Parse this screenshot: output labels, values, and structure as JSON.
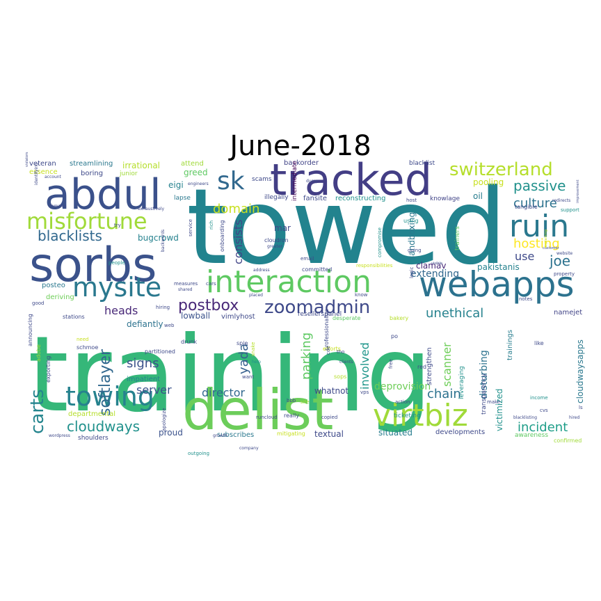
{
  "chart_data": {
    "type": "wordcloud",
    "title": "June-2018",
    "colormap": "viridis",
    "background": "#ffffff",
    "words": [
      {
        "text": "towed",
        "weight": 150,
        "color": "#22838e"
      },
      {
        "text": "training",
        "weight": 150,
        "color": "#35b779"
      },
      {
        "text": "delist",
        "weight": 80,
        "color": "#6ccd5a"
      },
      {
        "text": "abdul",
        "weight": 60,
        "color": "#3b518b"
      },
      {
        "text": "sorbs",
        "weight": 68,
        "color": "#3b528b"
      },
      {
        "text": "tracked",
        "weight": 62,
        "color": "#433e85"
      },
      {
        "text": "webapps",
        "weight": 50,
        "color": "#2c728e"
      },
      {
        "text": "ruin",
        "weight": 44,
        "color": "#2a788e"
      },
      {
        "text": "interaction",
        "weight": 44,
        "color": "#5ec962"
      },
      {
        "text": "virtbiz",
        "weight": 44,
        "color": "#a0da39"
      },
      {
        "text": "towing",
        "weight": 38,
        "color": "#26828e"
      },
      {
        "text": "mysite",
        "weight": 38,
        "color": "#2a788e"
      },
      {
        "text": "misfortune",
        "weight": 32,
        "color": "#a0da39"
      },
      {
        "text": "sk",
        "weight": 36,
        "color": "#31688e"
      },
      {
        "text": "switzerland",
        "weight": 26,
        "color": "#b5de2b"
      },
      {
        "text": "zoomadmin",
        "weight": 26,
        "color": "#3e4989"
      },
      {
        "text": "postbox",
        "weight": 22,
        "color": "#482878"
      },
      {
        "text": "carts",
        "weight": 26,
        "color": "#25858e"
      },
      {
        "text": "softlayer",
        "weight": 22,
        "color": "#31688e"
      },
      {
        "text": "cloudways",
        "weight": 20,
        "color": "#21918c"
      },
      {
        "text": "blacklists",
        "weight": 20,
        "color": "#31688e"
      },
      {
        "text": "passive",
        "weight": 20,
        "color": "#21918c"
      },
      {
        "text": "culture",
        "weight": 18,
        "color": "#2c728e"
      },
      {
        "text": "joe",
        "weight": 20,
        "color": "#2c728e"
      },
      {
        "text": "hosting",
        "weight": 18,
        "color": "#fde725"
      },
      {
        "text": "consists",
        "weight": 16,
        "color": "#414487"
      },
      {
        "text": "domain",
        "weight": 18,
        "color": "#c8e020"
      },
      {
        "text": "chain",
        "weight": 18,
        "color": "#2c728e"
      },
      {
        "text": "incident",
        "weight": 18,
        "color": "#1f9e89"
      },
      {
        "text": "unethical",
        "weight": 18,
        "color": "#26828e"
      },
      {
        "text": "yada",
        "weight": 18,
        "color": "#355f8d"
      },
      {
        "text": "parking",
        "weight": 18,
        "color": "#5ec962"
      },
      {
        "text": "scanner",
        "weight": 16,
        "color": "#6ece58"
      },
      {
        "text": "involved",
        "weight": 16,
        "color": "#1f968b"
      },
      {
        "text": "disturbing",
        "weight": 14,
        "color": "#2c728e"
      },
      {
        "text": "heads",
        "weight": 16,
        "color": "#482878"
      },
      {
        "text": "signs",
        "weight": 18,
        "color": "#3b528b"
      },
      {
        "text": "director",
        "weight": 16,
        "color": "#31688e"
      },
      {
        "text": "server",
        "weight": 16,
        "color": "#3b528b"
      },
      {
        "text": "use",
        "weight": 16,
        "color": "#3e4989"
      },
      {
        "text": "clamav",
        "weight": 12,
        "color": "#482878"
      },
      {
        "text": "pakistanis",
        "weight": 12,
        "color": "#26828e"
      },
      {
        "text": "extending",
        "weight": 14,
        "color": "#31688e"
      },
      {
        "text": "sandboxing",
        "weight": 12,
        "color": "#2a788e"
      },
      {
        "text": "deprovision",
        "weight": 14,
        "color": "#6ece58"
      },
      {
        "text": "cloudwaysapps",
        "weight": 12,
        "color": "#2a788e"
      },
      {
        "text": "victimized",
        "weight": 12,
        "color": "#21918c"
      },
      {
        "text": "trainings",
        "weight": 10,
        "color": "#287d8e"
      },
      {
        "text": "irrational",
        "weight": 12,
        "color": "#b5de2b"
      },
      {
        "text": "bugcrowd",
        "weight": 12,
        "color": "#26828e"
      },
      {
        "text": "mar",
        "weight": 12,
        "color": "#3e4989"
      },
      {
        "text": "lowball",
        "weight": 12,
        "color": "#3b528b"
      },
      {
        "text": "vimlyhost",
        "weight": 10,
        "color": "#3e4989"
      },
      {
        "text": "namejet",
        "weight": 10,
        "color": "#414487"
      },
      {
        "text": "situated",
        "weight": 12,
        "color": "#287d8e"
      },
      {
        "text": "textual",
        "weight": 12,
        "color": "#3e4989"
      },
      {
        "text": "proud",
        "weight": 12,
        "color": "#3b528b"
      },
      {
        "text": "defiantly",
        "weight": 12,
        "color": "#2c728e"
      },
      {
        "text": "whatnot",
        "weight": 12,
        "color": "#3e4989"
      },
      {
        "text": "strengthen",
        "weight": 10,
        "color": "#3e4989"
      },
      {
        "text": "impatient",
        "weight": 10,
        "color": "#26828e"
      },
      {
        "text": "pooling",
        "weight": 12,
        "color": "#c8e020"
      },
      {
        "text": "oil",
        "weight": 12,
        "color": "#287d8e"
      },
      {
        "text": "greed",
        "weight": 12,
        "color": "#5ec962"
      },
      {
        "text": "eigi",
        "weight": 12,
        "color": "#26828e"
      },
      {
        "text": "fansite",
        "weight": 10,
        "color": "#3e4989"
      },
      {
        "text": "posteo",
        "weight": 10,
        "color": "#2a788e"
      },
      {
        "text": "deriving",
        "weight": 10,
        "color": "#6ece58"
      },
      {
        "text": "streamlining",
        "weight": 10,
        "color": "#2a788e"
      },
      {
        "text": "veteran",
        "weight": 10,
        "color": "#3e4989"
      },
      {
        "text": "essence",
        "weight": 10,
        "color": "#c8e020"
      },
      {
        "text": "boring",
        "weight": 10,
        "color": "#3e4989"
      },
      {
        "text": "attend",
        "weight": 10,
        "color": "#a0da39"
      },
      {
        "text": "backorder",
        "weight": 10,
        "color": "#414487"
      },
      {
        "text": "blacklist",
        "weight": 9,
        "color": "#3e4989"
      },
      {
        "text": "intermediate",
        "weight": 9,
        "color": "#440154"
      },
      {
        "text": "reconstructing",
        "weight": 10,
        "color": "#21918c"
      },
      {
        "text": "illegally",
        "weight": 9,
        "color": "#3e4989"
      },
      {
        "text": "knowlage",
        "weight": 9,
        "color": "#414487"
      },
      {
        "text": "lapse",
        "weight": 9,
        "color": "#2a788e"
      },
      {
        "text": "scams",
        "weight": 9,
        "color": "#3e4989"
      },
      {
        "text": "junior",
        "weight": 9,
        "color": "#a0da39"
      },
      {
        "text": "subscribes",
        "weight": 10,
        "color": "#2a788e"
      },
      {
        "text": "departmental",
        "weight": 10,
        "color": "#b5de2b"
      },
      {
        "text": "developments",
        "weight": 10,
        "color": "#3e4989"
      },
      {
        "text": "shoulders",
        "weight": 9,
        "color": "#3e4989"
      },
      {
        "text": "resellerspanel",
        "weight": 9,
        "color": "#3e4989"
      },
      {
        "text": "ticketing",
        "weight": 9,
        "color": "#21918c"
      },
      {
        "text": "transparency",
        "weight": 9,
        "color": "#3e4989"
      },
      {
        "text": "leveraging",
        "weight": 9,
        "color": "#21918c"
      },
      {
        "text": "awareness",
        "weight": 9,
        "color": "#5ec962"
      },
      {
        "text": "confirmed",
        "weight": 8,
        "color": "#a0da39"
      },
      {
        "text": "responsibilities",
        "weight": 7,
        "color": "#c8e020"
      },
      {
        "text": "committed",
        "weight": 8,
        "color": "#3e4989"
      },
      {
        "text": "cloudron",
        "weight": 8,
        "color": "#3e4989"
      },
      {
        "text": "onboarding",
        "weight": 8,
        "color": "#3e4989"
      },
      {
        "text": "trainers",
        "weight": 9,
        "color": "#5ec962"
      },
      {
        "text": "professionalize",
        "weight": 8,
        "color": "#3e4989"
      },
      {
        "text": "desperate",
        "weight": 8,
        "color": "#5ec962"
      },
      {
        "text": "stations",
        "weight": 8,
        "color": "#3e4989"
      },
      {
        "text": "announcing",
        "weight": 8,
        "color": "#3e4989"
      },
      {
        "text": "exporting",
        "weight": 8,
        "color": "#3e4989"
      },
      {
        "text": "partitioned",
        "weight": 8,
        "color": "#3e4989"
      },
      {
        "text": "schmoe",
        "weight": 8,
        "color": "#3e4989"
      },
      {
        "text": "adobe",
        "weight": 8,
        "color": "#a0da39"
      },
      {
        "text": "spie",
        "weight": 8,
        "color": "#3e4989"
      },
      {
        "text": "drunk",
        "weight": 8,
        "color": "#3e4989"
      },
      {
        "text": "snake",
        "weight": 7,
        "color": "#b5de2b"
      },
      {
        "text": "bakery",
        "weight": 8,
        "color": "#b5de2b"
      },
      {
        "text": "efforts",
        "weight": 8,
        "color": "#c8e020"
      },
      {
        "text": "sops",
        "weight": 8,
        "color": "#b5de2b"
      },
      {
        "text": "runcloud",
        "weight": 7,
        "color": "#3e4989"
      },
      {
        "text": "copied",
        "weight": 7,
        "color": "#3e4989"
      },
      {
        "text": "mitigating",
        "weight": 8,
        "color": "#c8e020"
      },
      {
        "text": "outgoing",
        "weight": 7,
        "color": "#21918c"
      },
      {
        "text": "apologize",
        "weight": 7,
        "color": "#3e4989"
      },
      {
        "text": "income",
        "weight": 7,
        "color": "#21918c"
      },
      {
        "text": "make",
        "weight": 7,
        "color": "#3e4989"
      },
      {
        "text": "blacklisting",
        "weight": 6,
        "color": "#3e4989"
      },
      {
        "text": "hired",
        "weight": 6,
        "color": "#3e4989"
      },
      {
        "text": "cvs",
        "weight": 7,
        "color": "#3e4989"
      },
      {
        "text": "ls",
        "weight": 7,
        "color": "#3e4989"
      },
      {
        "text": "like",
        "weight": 8,
        "color": "#3e4989"
      },
      {
        "text": "notes",
        "weight": 7,
        "color": "#3e4989"
      },
      {
        "text": "website",
        "weight": 6,
        "color": "#3e4989"
      },
      {
        "text": "property",
        "weight": 7,
        "color": "#3e4989"
      },
      {
        "text": "support",
        "weight": 7,
        "color": "#21918c"
      },
      {
        "text": "tangible",
        "weight": 8,
        "color": "#3e4989"
      },
      {
        "text": "redirects",
        "weight": 6,
        "color": "#3e4989"
      },
      {
        "text": "customer",
        "weight": 5,
        "color": "#3e4989"
      },
      {
        "text": "explaining",
        "weight": 5,
        "color": "#c8e020"
      },
      {
        "text": "improvement",
        "weight": 5,
        "color": "#3e4989"
      },
      {
        "text": "visible",
        "weight": 5,
        "color": "#3e4989"
      },
      {
        "text": "logic",
        "weight": 7,
        "color": "#3e4989"
      },
      {
        "text": "compromise",
        "weight": 7,
        "color": "#21918c"
      },
      {
        "text": "using",
        "weight": 8,
        "color": "#21918c"
      },
      {
        "text": "going",
        "weight": 7,
        "color": "#3e4989"
      },
      {
        "text": "red",
        "weight": 8,
        "color": "#3e4989"
      },
      {
        "text": "free",
        "weight": 7,
        "color": "#3e4989"
      },
      {
        "text": "action",
        "weight": 7,
        "color": "#3e4989"
      },
      {
        "text": "vps",
        "weight": 7,
        "color": "#3e4989"
      },
      {
        "text": "know",
        "weight": 7,
        "color": "#3e4989"
      },
      {
        "text": "clients",
        "weight": 6,
        "color": "#3e4989"
      },
      {
        "text": "tho",
        "weight": 7,
        "color": "#3e4989"
      },
      {
        "text": "cde",
        "weight": 7,
        "color": "#3e4989"
      },
      {
        "text": "po",
        "weight": 8,
        "color": "#3e4989"
      },
      {
        "text": "site",
        "weight": 7,
        "color": "#a0da39"
      },
      {
        "text": "bbb",
        "weight": 7,
        "color": "#3e4989"
      },
      {
        "text": "really",
        "weight": 8,
        "color": "#3e4989"
      },
      {
        "text": "want",
        "weight": 7,
        "color": "#3e4989"
      },
      {
        "text": "help",
        "weight": 6,
        "color": "#21918c"
      },
      {
        "text": "email",
        "weight": 7,
        "color": "#3e4989"
      },
      {
        "text": "address",
        "weight": 6,
        "color": "#3e4989"
      },
      {
        "text": "greater",
        "weight": 6,
        "color": "#3e4989"
      },
      {
        "text": "rich",
        "weight": 7,
        "color": "#21918c"
      },
      {
        "text": "measures",
        "weight": 7,
        "color": "#3e4989"
      },
      {
        "text": "shared",
        "weight": 6,
        "color": "#3e4989"
      },
      {
        "text": "hiring",
        "weight": 7,
        "color": "#3e4989"
      },
      {
        "text": "placed",
        "weight": 6,
        "color": "#3e4989"
      },
      {
        "text": "cars",
        "weight": 7,
        "color": "#3e4989"
      },
      {
        "text": "web",
        "weight": 7,
        "color": "#3e4989"
      },
      {
        "text": "need",
        "weight": 7,
        "color": "#c8e020"
      },
      {
        "text": "way",
        "weight": 7,
        "color": "#3e4989"
      },
      {
        "text": "people",
        "weight": 7,
        "color": "#21918c"
      },
      {
        "text": "good",
        "weight": 7,
        "color": "#3e4989"
      },
      {
        "text": "try",
        "weight": 7,
        "color": "#3e4989"
      },
      {
        "text": "wordpress",
        "weight": 6,
        "color": "#3e4989"
      },
      {
        "text": "engineers",
        "weight": 6,
        "color": "#3e4989"
      },
      {
        "text": "growth",
        "weight": 6,
        "color": "#3e4989"
      },
      {
        "text": "company",
        "weight": 6,
        "color": "#3e4989"
      },
      {
        "text": "account",
        "weight": 6,
        "color": "#3e4989"
      },
      {
        "text": "domains",
        "weight": 6,
        "color": "#3e4989"
      },
      {
        "text": "identifying",
        "weight": 6,
        "color": "#3e4989"
      },
      {
        "text": "violators",
        "weight": 5,
        "color": "#3e4989"
      },
      {
        "text": "exhaustively",
        "weight": 6,
        "color": "#3e4989"
      },
      {
        "text": "backwards",
        "weight": 6,
        "color": "#3e4989"
      },
      {
        "text": "service",
        "weight": 7,
        "color": "#3e4989"
      },
      {
        "text": "host",
        "weight": 7,
        "color": "#3e4989"
      },
      {
        "text": "dump",
        "weight": 6,
        "color": "#3e4989"
      }
    ]
  }
}
